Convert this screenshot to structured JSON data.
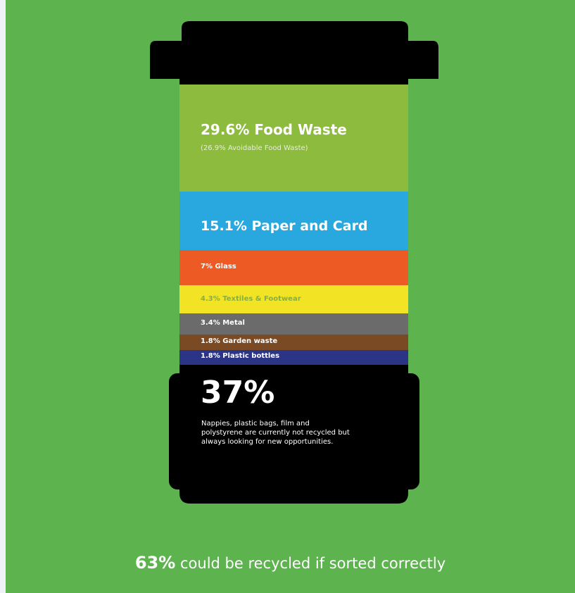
{
  "bin": {
    "segments": [
      {
        "label": "29.6% Food Waste",
        "note": "(26.9% Avoidable Food Waste)"
      },
      {
        "label": "15.1% Paper and Card"
      },
      {
        "label": "7% Glass"
      },
      {
        "label": "4.3% Textiles & Footwear"
      },
      {
        "label": "3.4% Metal"
      },
      {
        "label": "1.8% Garden waste"
      },
      {
        "label": "1.8% Plastic bottles"
      }
    ],
    "remainder": {
      "value": "37%",
      "text": "Nappies, plastic bags, film and polystyrene are currently not recycled but always looking for new opportunities."
    }
  },
  "footer": {
    "highlight": "63%",
    "text": "could be recycled if sorted correctly"
  }
}
